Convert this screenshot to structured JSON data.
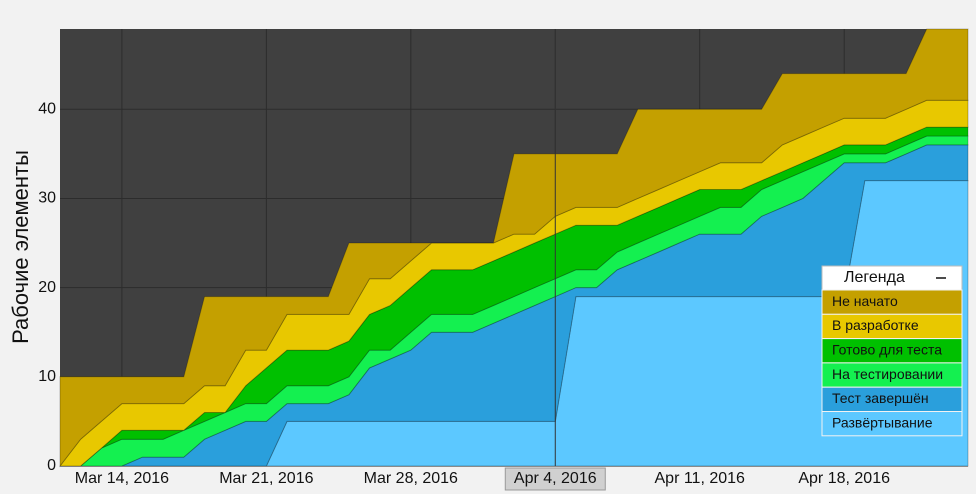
{
  "chart_data": {
    "type": "stacked_area",
    "y_label": "Рабочие элементы",
    "legend_title": "Легенда",
    "legend": "right",
    "grid": true,
    "highlight_x": "2016-04-04",
    "x": [
      "2016-03-11",
      "2016-03-12",
      "2016-03-13",
      "2016-03-14",
      "2016-03-15",
      "2016-03-16",
      "2016-03-17",
      "2016-03-18",
      "2016-03-19",
      "2016-03-20",
      "2016-03-21",
      "2016-03-22",
      "2016-03-23",
      "2016-03-24",
      "2016-03-25",
      "2016-03-26",
      "2016-03-27",
      "2016-03-28",
      "2016-03-29",
      "2016-03-30",
      "2016-03-31",
      "2016-04-01",
      "2016-04-02",
      "2016-04-03",
      "2016-04-04",
      "2016-04-05",
      "2016-04-06",
      "2016-04-07",
      "2016-04-08",
      "2016-04-09",
      "2016-04-10",
      "2016-04-11",
      "2016-04-12",
      "2016-04-13",
      "2016-04-14",
      "2016-04-15",
      "2016-04-16",
      "2016-04-17",
      "2016-04-18",
      "2016-04-19",
      "2016-04-20",
      "2016-04-21",
      "2016-04-22",
      "2016-04-23",
      "2016-04-24"
    ],
    "xlim": [
      "2016-03-11",
      "2016-04-24"
    ],
    "xticks": [
      {
        "value": "2016-03-14",
        "label": "Mar 14, 2016"
      },
      {
        "value": "2016-03-21",
        "label": "Mar 21, 2016"
      },
      {
        "value": "2016-03-28",
        "label": "Mar 28, 2016"
      },
      {
        "value": "2016-04-04",
        "label": "Apr 4, 2016"
      },
      {
        "value": "2016-04-11",
        "label": "Apr 11, 2016"
      },
      {
        "value": "2016-04-18",
        "label": "Apr 18, 2016"
      }
    ],
    "ylim": [
      0,
      49
    ],
    "yticks": [
      0,
      10,
      20,
      30,
      40
    ],
    "series": [
      {
        "name": "Не начато",
        "color": "#c4a000",
        "values": [
          10,
          7,
          5,
          3,
          3,
          3,
          3,
          10,
          10,
          6,
          6,
          2,
          2,
          2,
          8,
          4,
          4,
          2,
          0,
          0,
          0,
          0,
          9,
          9,
          7,
          6,
          6,
          6,
          10,
          9,
          8,
          7,
          6,
          6,
          6,
          8,
          7,
          6,
          5,
          5,
          5,
          4,
          8,
          8,
          8
        ]
      },
      {
        "name": "В разработке",
        "color": "#e8c800",
        "values": [
          0,
          3,
          3,
          3,
          3,
          3,
          3,
          3,
          3,
          4,
          2,
          4,
          4,
          4,
          3,
          4,
          3,
          3,
          3,
          3,
          3,
          2,
          2,
          1,
          2,
          2,
          2,
          2,
          2,
          2,
          2,
          2,
          3,
          3,
          2,
          3,
          3,
          3,
          3,
          3,
          3,
          3,
          3,
          3,
          3
        ]
      },
      {
        "name": "Готово для теста",
        "color": "#00c000",
        "values": [
          0,
          0,
          0,
          1,
          1,
          1,
          0,
          1,
          0,
          2,
          4,
          4,
          4,
          4,
          4,
          4,
          5,
          5,
          5,
          5,
          5,
          5,
          5,
          5,
          5,
          5,
          5,
          3,
          3,
          3,
          3,
          3,
          2,
          2,
          1,
          1,
          1,
          1,
          1,
          1,
          1,
          1,
          1,
          1,
          1
        ]
      },
      {
        "name": "На тестировании",
        "color": "#14f050",
        "values": [
          0,
          0,
          2,
          3,
          2,
          2,
          3,
          2,
          2,
          2,
          2,
          2,
          2,
          2,
          2,
          2,
          1,
          2,
          2,
          2,
          2,
          2,
          2,
          2,
          2,
          2,
          2,
          2,
          2,
          2,
          2,
          2,
          3,
          3,
          3,
          3,
          3,
          2,
          1,
          1,
          1,
          1,
          1,
          1,
          1
        ]
      },
      {
        "name": "Тест завершён",
        "color": "#2a9fdc",
        "values": [
          0,
          0,
          0,
          0,
          1,
          1,
          1,
          3,
          4,
          5,
          5,
          2,
          2,
          2,
          3,
          6,
          7,
          8,
          10,
          10,
          10,
          11,
          12,
          13,
          14,
          1,
          1,
          3,
          4,
          5,
          6,
          7,
          7,
          7,
          9,
          10,
          11,
          13,
          15,
          2,
          2,
          3,
          4,
          4,
          4
        ]
      },
      {
        "name": "Развёртывание",
        "color": "#5cc8ff",
        "values": [
          0,
          0,
          0,
          0,
          0,
          0,
          0,
          0,
          0,
          0,
          0,
          5,
          5,
          5,
          5,
          5,
          5,
          5,
          5,
          5,
          5,
          5,
          5,
          5,
          5,
          19,
          19,
          19,
          19,
          19,
          19,
          19,
          19,
          19,
          19,
          19,
          19,
          19,
          19,
          32,
          32,
          32,
          32,
          32,
          32
        ]
      }
    ]
  }
}
